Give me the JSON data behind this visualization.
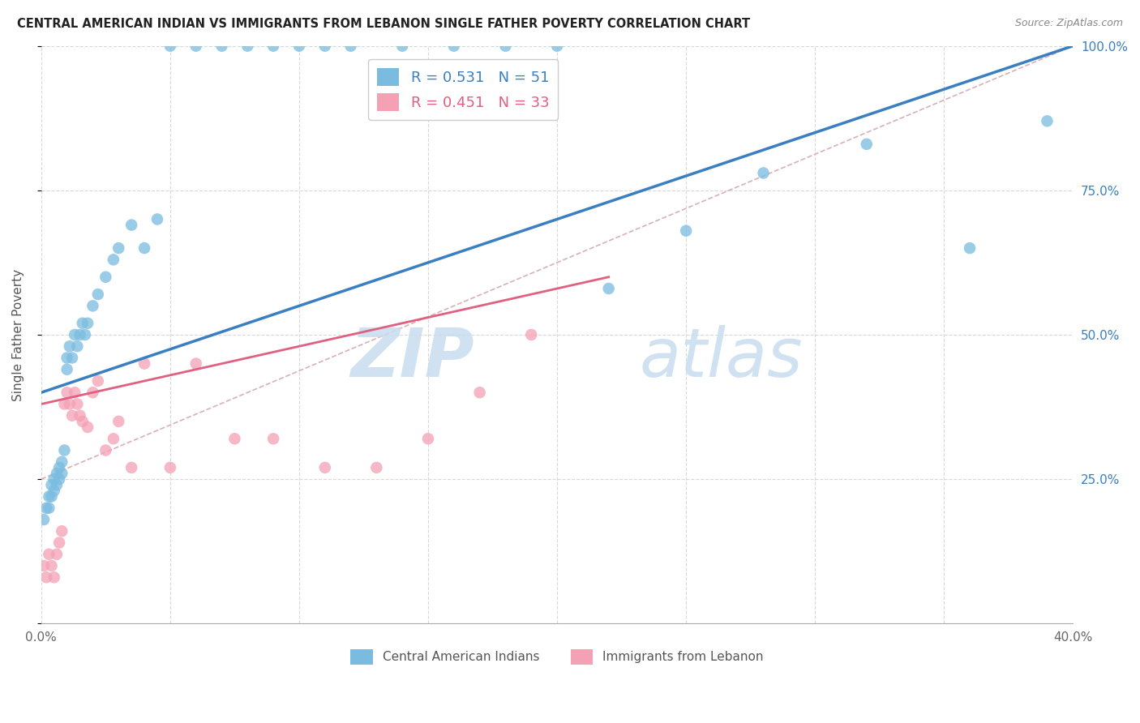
{
  "title": "CENTRAL AMERICAN INDIAN VS IMMIGRANTS FROM LEBANON SINGLE FATHER POVERTY CORRELATION CHART",
  "source": "Source: ZipAtlas.com",
  "ylabel": "Single Father Poverty",
  "xlim": [
    0,
    0.4
  ],
  "ylim": [
    0,
    1.0
  ],
  "x_ticks": [
    0.0,
    0.05,
    0.1,
    0.15,
    0.2,
    0.25,
    0.3,
    0.35,
    0.4
  ],
  "x_tick_labels": [
    "0.0%",
    "",
    "",
    "",
    "",
    "",
    "",
    "",
    "40.0%"
  ],
  "y_ticks": [
    0.0,
    0.25,
    0.5,
    0.75,
    1.0
  ],
  "y_tick_labels_right": [
    "",
    "25.0%",
    "50.0%",
    "75.0%",
    "100.0%"
  ],
  "legend_text1": "R = 0.531   N = 51",
  "legend_text2": "R = 0.451   N = 33",
  "color_blue": "#7abce0",
  "color_pink": "#f4a0b5",
  "color_blue_line": "#3a7fc1",
  "color_pink_line": "#e06080",
  "color_blue_text": "#3a7fc1",
  "watermark_zip": "ZIP",
  "watermark_atlas": "atlas",
  "label1": "Central American Indians",
  "label2": "Immigrants from Lebanon",
  "blue_scatter_x": [
    0.001,
    0.002,
    0.003,
    0.003,
    0.004,
    0.004,
    0.005,
    0.005,
    0.006,
    0.006,
    0.007,
    0.007,
    0.008,
    0.008,
    0.009,
    0.01,
    0.01,
    0.011,
    0.012,
    0.013,
    0.014,
    0.015,
    0.016,
    0.017,
    0.018,
    0.02,
    0.022,
    0.025,
    0.028,
    0.03,
    0.035,
    0.04,
    0.045,
    0.05,
    0.06,
    0.07,
    0.08,
    0.09,
    0.1,
    0.11,
    0.12,
    0.14,
    0.16,
    0.18,
    0.2,
    0.22,
    0.25,
    0.28,
    0.32,
    0.36,
    0.39
  ],
  "blue_scatter_y": [
    0.18,
    0.2,
    0.22,
    0.2,
    0.24,
    0.22,
    0.23,
    0.25,
    0.24,
    0.26,
    0.27,
    0.25,
    0.26,
    0.28,
    0.3,
    0.44,
    0.46,
    0.48,
    0.46,
    0.5,
    0.48,
    0.5,
    0.52,
    0.5,
    0.52,
    0.55,
    0.57,
    0.6,
    0.63,
    0.65,
    0.69,
    0.65,
    0.7,
    1.0,
    1.0,
    1.0,
    1.0,
    1.0,
    1.0,
    1.0,
    1.0,
    1.0,
    1.0,
    1.0,
    1.0,
    0.58,
    0.68,
    0.78,
    0.83,
    0.65,
    0.87
  ],
  "pink_scatter_x": [
    0.001,
    0.002,
    0.003,
    0.004,
    0.005,
    0.006,
    0.007,
    0.008,
    0.009,
    0.01,
    0.011,
    0.012,
    0.013,
    0.014,
    0.015,
    0.016,
    0.018,
    0.02,
    0.022,
    0.025,
    0.028,
    0.03,
    0.035,
    0.04,
    0.05,
    0.06,
    0.075,
    0.09,
    0.11,
    0.13,
    0.15,
    0.17,
    0.19
  ],
  "pink_scatter_y": [
    0.1,
    0.08,
    0.12,
    0.1,
    0.08,
    0.12,
    0.14,
    0.16,
    0.38,
    0.4,
    0.38,
    0.36,
    0.4,
    0.38,
    0.36,
    0.35,
    0.34,
    0.4,
    0.42,
    0.3,
    0.32,
    0.35,
    0.27,
    0.45,
    0.27,
    0.45,
    0.32,
    0.32,
    0.27,
    0.27,
    0.32,
    0.4,
    0.5
  ],
  "blue_line_x0": 0.0,
  "blue_line_x1": 0.4,
  "blue_line_y0": 0.4,
  "blue_line_y1": 1.0,
  "pink_line_x0": 0.0,
  "pink_line_x1": 0.22,
  "pink_line_y0": 0.38,
  "pink_line_y1": 0.6,
  "dashed_line_x0": 0.0,
  "dashed_line_x1": 0.4,
  "dashed_line_y0": 0.25,
  "dashed_line_y1": 1.0,
  "grid_color": "#d8d8d8",
  "bg_color": "#ffffff"
}
